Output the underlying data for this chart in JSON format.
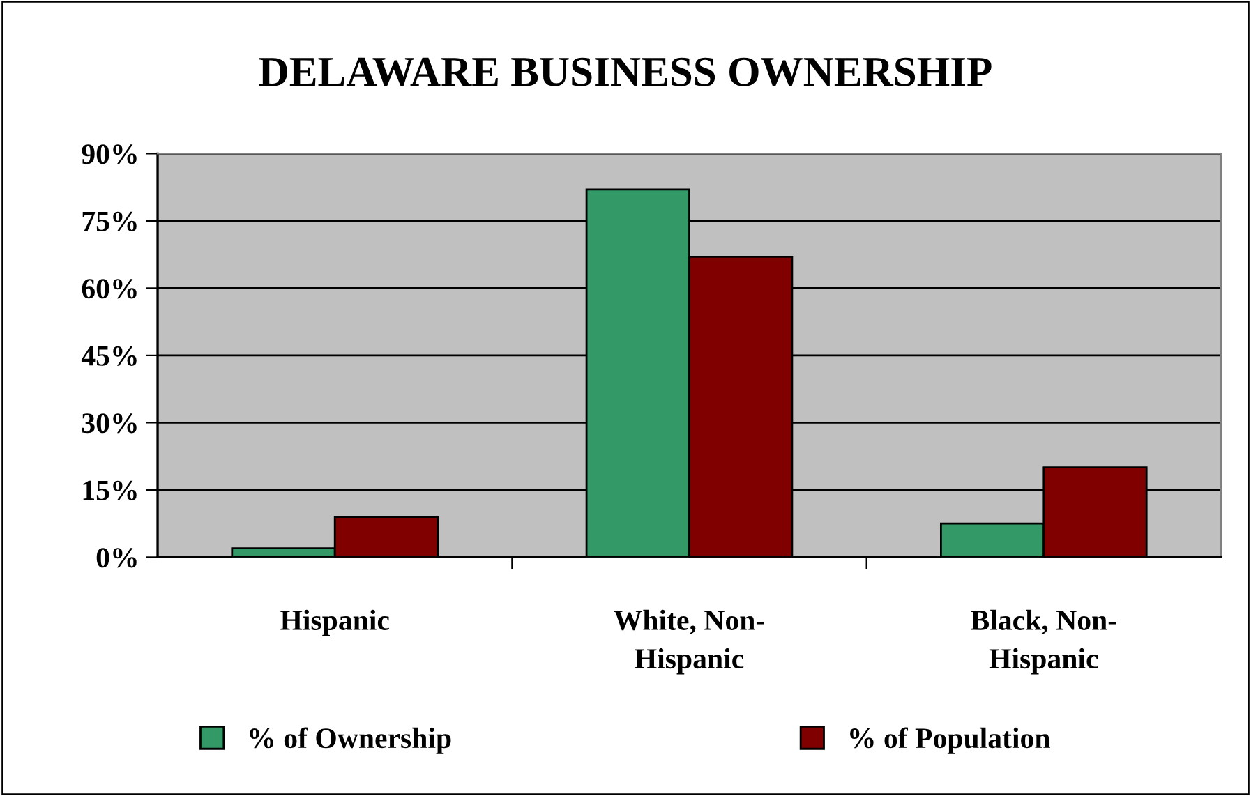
{
  "chart_data": {
    "type": "bar",
    "title": "DELAWARE BUSINESS OWNERSHIP",
    "categories": [
      "Hispanic",
      "White, Non-\nHispanic",
      "Black, Non-\nHispanic"
    ],
    "series": [
      {
        "name": "% of Ownership",
        "color": "#339966",
        "values": [
          2,
          82,
          7.5
        ]
      },
      {
        "name": "% of Population",
        "color": "#800000",
        "values": [
          9,
          67,
          20
        ]
      }
    ],
    "ylim": [
      0,
      90
    ],
    "yticks": [
      {
        "value": 0,
        "label": "0%"
      },
      {
        "value": 15,
        "label": "15%"
      },
      {
        "value": 30,
        "label": "30%"
      },
      {
        "value": 45,
        "label": "45%"
      },
      {
        "value": 60,
        "label": "60%"
      },
      {
        "value": 75,
        "label": "75%"
      },
      {
        "value": 90,
        "label": "90%"
      }
    ],
    "grid": "y",
    "legend": "bottom"
  }
}
